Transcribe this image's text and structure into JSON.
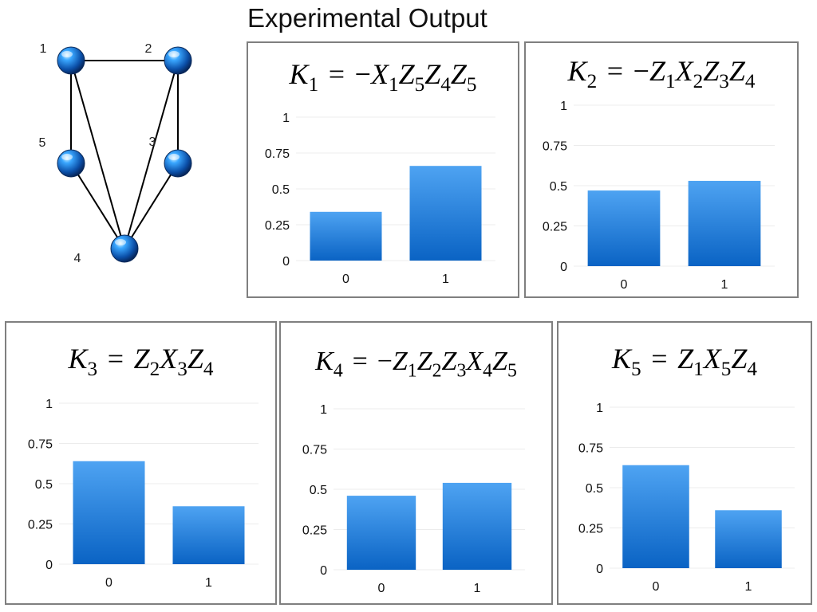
{
  "page": {
    "title": "Experimental Output"
  },
  "graph": {
    "nodes": [
      {
        "id": "1",
        "label": "1"
      },
      {
        "id": "2",
        "label": "2"
      },
      {
        "id": "3",
        "label": "3"
      },
      {
        "id": "4",
        "label": "4"
      },
      {
        "id": "5",
        "label": "5"
      }
    ],
    "edges": [
      [
        "1",
        "2"
      ],
      [
        "1",
        "5"
      ],
      [
        "1",
        "4"
      ],
      [
        "2",
        "3"
      ],
      [
        "2",
        "4"
      ],
      [
        "3",
        "4"
      ],
      [
        "5",
        "4"
      ]
    ],
    "node_color": "#1e7fd8"
  },
  "bar_color_top": "#4ea3f2",
  "bar_color_bottom": "#0a63c4",
  "chart_data": [
    {
      "type": "bar",
      "title": "K1 = −X1Z5Z4Z5",
      "title_parts": {
        "lhs": "K",
        "lhs_sub": "1",
        "rhs_sign": "−",
        "rhs": [
          [
            "X",
            "1"
          ],
          [
            "Z",
            "5"
          ],
          [
            "Z",
            "4"
          ],
          [
            "Z",
            "5"
          ]
        ]
      },
      "categories": [
        "0",
        "1"
      ],
      "values": [
        0.34,
        0.66
      ],
      "yticks": [
        "0",
        "0.25",
        "0.5",
        "0.75",
        "1"
      ],
      "ylim": [
        0,
        1
      ],
      "grid": true
    },
    {
      "type": "bar",
      "title": "K2 = −Z1X2Z3Z4",
      "title_parts": {
        "lhs": "K",
        "lhs_sub": "2",
        "rhs_sign": "−",
        "rhs": [
          [
            "Z",
            "1"
          ],
          [
            "X",
            "2"
          ],
          [
            "Z",
            "3"
          ],
          [
            "Z",
            "4"
          ]
        ]
      },
      "categories": [
        "0",
        "1"
      ],
      "values": [
        0.47,
        0.53
      ],
      "yticks": [
        "0",
        "0.25",
        "0.5",
        "0.75",
        "1"
      ],
      "ylim": [
        0,
        1
      ],
      "grid": true
    },
    {
      "type": "bar",
      "title": "K3 = Z2X3Z4",
      "title_parts": {
        "lhs": "K",
        "lhs_sub": "3",
        "rhs_sign": "",
        "rhs": [
          [
            "Z",
            "2"
          ],
          [
            "X",
            "3"
          ],
          [
            "Z",
            "4"
          ]
        ]
      },
      "categories": [
        "0",
        "1"
      ],
      "values": [
        0.64,
        0.36
      ],
      "yticks": [
        "0",
        "0.25",
        "0.5",
        "0.75",
        "1"
      ],
      "ylim": [
        0,
        1
      ],
      "grid": true
    },
    {
      "type": "bar",
      "title": "K4 = −Z1Z2Z3X4Z5",
      "title_parts": {
        "lhs": "K",
        "lhs_sub": "4",
        "rhs_sign": "−",
        "rhs": [
          [
            "Z",
            "1"
          ],
          [
            "Z",
            "2"
          ],
          [
            "Z",
            "3"
          ],
          [
            "X",
            "4"
          ],
          [
            "Z",
            "5"
          ]
        ]
      },
      "categories": [
        "0",
        "1"
      ],
      "values": [
        0.46,
        0.54
      ],
      "yticks": [
        "0",
        "0.25",
        "0.5",
        "0.75",
        "1"
      ],
      "ylim": [
        0,
        1
      ],
      "grid": true
    },
    {
      "type": "bar",
      "title": "K5 = Z1X5Z4",
      "title_parts": {
        "lhs": "K",
        "lhs_sub": "5",
        "rhs_sign": "",
        "rhs": [
          [
            "Z",
            "1"
          ],
          [
            "X",
            "5"
          ],
          [
            "Z",
            "4"
          ]
        ]
      },
      "categories": [
        "0",
        "1"
      ],
      "values": [
        0.64,
        0.36
      ],
      "yticks": [
        "0",
        "0.25",
        "0.5",
        "0.75",
        "1"
      ],
      "ylim": [
        0,
        1
      ],
      "grid": true
    }
  ]
}
